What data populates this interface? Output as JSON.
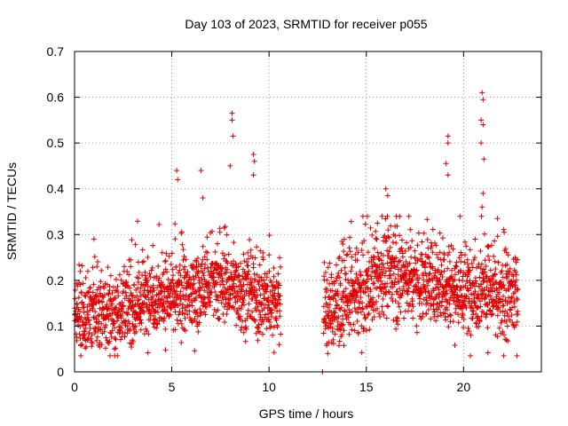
{
  "chart_data": {
    "type": "scatter",
    "title": "Day 103 of 2023, SRMTID for receiver p055",
    "xlabel": "GPS time / hours",
    "ylabel": "SRMTID / TECUs",
    "xlim": [
      0,
      24
    ],
    "ylim": [
      0,
      0.7
    ],
    "xticks": [
      0,
      5,
      10,
      15,
      20
    ],
    "xtick_labels": [
      "0",
      "5",
      "10",
      "15",
      "20"
    ],
    "yticks": [
      0,
      0.1,
      0.2,
      0.3,
      0.4,
      0.5,
      0.6,
      0.7
    ],
    "ytick_labels": [
      "0",
      "0.1",
      "0.2",
      "0.3",
      "0.4",
      "0.5",
      "0.6",
      "0.7"
    ],
    "grid": true,
    "marker": "+",
    "color": "#e00000",
    "series": [
      {
        "name": "SRMTID",
        "segments": [
          {
            "x_start": 0.0,
            "x_end": 10.6,
            "baseline": [
              [
                0,
                0.13
              ],
              [
                1,
                0.12
              ],
              [
                2,
                0.13
              ],
              [
                3,
                0.14
              ],
              [
                4,
                0.17
              ],
              [
                5,
                0.16
              ],
              [
                6,
                0.17
              ],
              [
                7,
                0.19
              ],
              [
                8,
                0.19
              ],
              [
                9,
                0.17
              ],
              [
                10,
                0.15
              ],
              [
                10.6,
                0.16
              ]
            ],
            "spread": 0.05
          },
          {
            "x_start": 12.75,
            "x_end": 12.75,
            "baseline": [
              [
                12.75,
                0.0
              ]
            ],
            "spread": 0.0
          },
          {
            "x_start": 12.8,
            "x_end": 22.8,
            "baseline": [
              [
                12.8,
                0.13
              ],
              [
                14,
                0.16
              ],
              [
                15,
                0.18
              ],
              [
                16,
                0.22
              ],
              [
                17,
                0.21
              ],
              [
                18,
                0.2
              ],
              [
                19,
                0.2
              ],
              [
                20,
                0.17
              ],
              [
                21,
                0.19
              ],
              [
                22,
                0.15
              ],
              [
                22.8,
                0.18
              ]
            ],
            "spread": 0.06
          }
        ],
        "highlights": [
          {
            "x": 1.0,
            "y": 0.29
          },
          {
            "x": 5.25,
            "y": 0.44
          },
          {
            "x": 5.3,
            "y": 0.42
          },
          {
            "x": 6.5,
            "y": 0.44
          },
          {
            "x": 6.6,
            "y": 0.38
          },
          {
            "x": 8.1,
            "y": 0.565
          },
          {
            "x": 8.1,
            "y": 0.55
          },
          {
            "x": 8.15,
            "y": 0.515
          },
          {
            "x": 8.0,
            "y": 0.45
          },
          {
            "x": 9.2,
            "y": 0.475
          },
          {
            "x": 9.25,
            "y": 0.46
          },
          {
            "x": 9.2,
            "y": 0.43
          },
          {
            "x": 16.0,
            "y": 0.4
          },
          {
            "x": 16.1,
            "y": 0.385
          },
          {
            "x": 19.2,
            "y": 0.515
          },
          {
            "x": 19.2,
            "y": 0.5
          },
          {
            "x": 19.1,
            "y": 0.455
          },
          {
            "x": 19.2,
            "y": 0.43
          },
          {
            "x": 20.95,
            "y": 0.61
          },
          {
            "x": 21.0,
            "y": 0.595
          },
          {
            "x": 20.9,
            "y": 0.55
          },
          {
            "x": 21.0,
            "y": 0.54
          },
          {
            "x": 20.9,
            "y": 0.5
          },
          {
            "x": 21.05,
            "y": 0.465
          },
          {
            "x": 21.0,
            "y": 0.39
          },
          {
            "x": 20.95,
            "y": 0.36
          }
        ]
      }
    ]
  }
}
